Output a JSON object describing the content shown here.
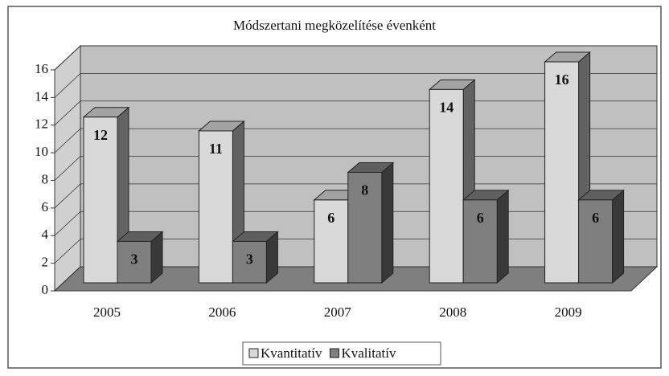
{
  "chart_data": {
    "type": "bar3d",
    "title": "Módszertani megközelítése évenként",
    "categories": [
      "2005",
      "2006",
      "2007",
      "2008",
      "2009"
    ],
    "series": [
      {
        "name": "Kvantitatív",
        "color": "#d9d9d9",
        "values": [
          12,
          11,
          6,
          14,
          16
        ]
      },
      {
        "name": "Kvalitatív",
        "color": "#7f7f7f",
        "values": [
          3,
          3,
          8,
          6,
          6
        ]
      }
    ],
    "ylim": [
      0,
      16
    ],
    "yticks": [
      0,
      2,
      4,
      6,
      8,
      10,
      12,
      14,
      16
    ],
    "grid": true,
    "legend": "bottom"
  }
}
